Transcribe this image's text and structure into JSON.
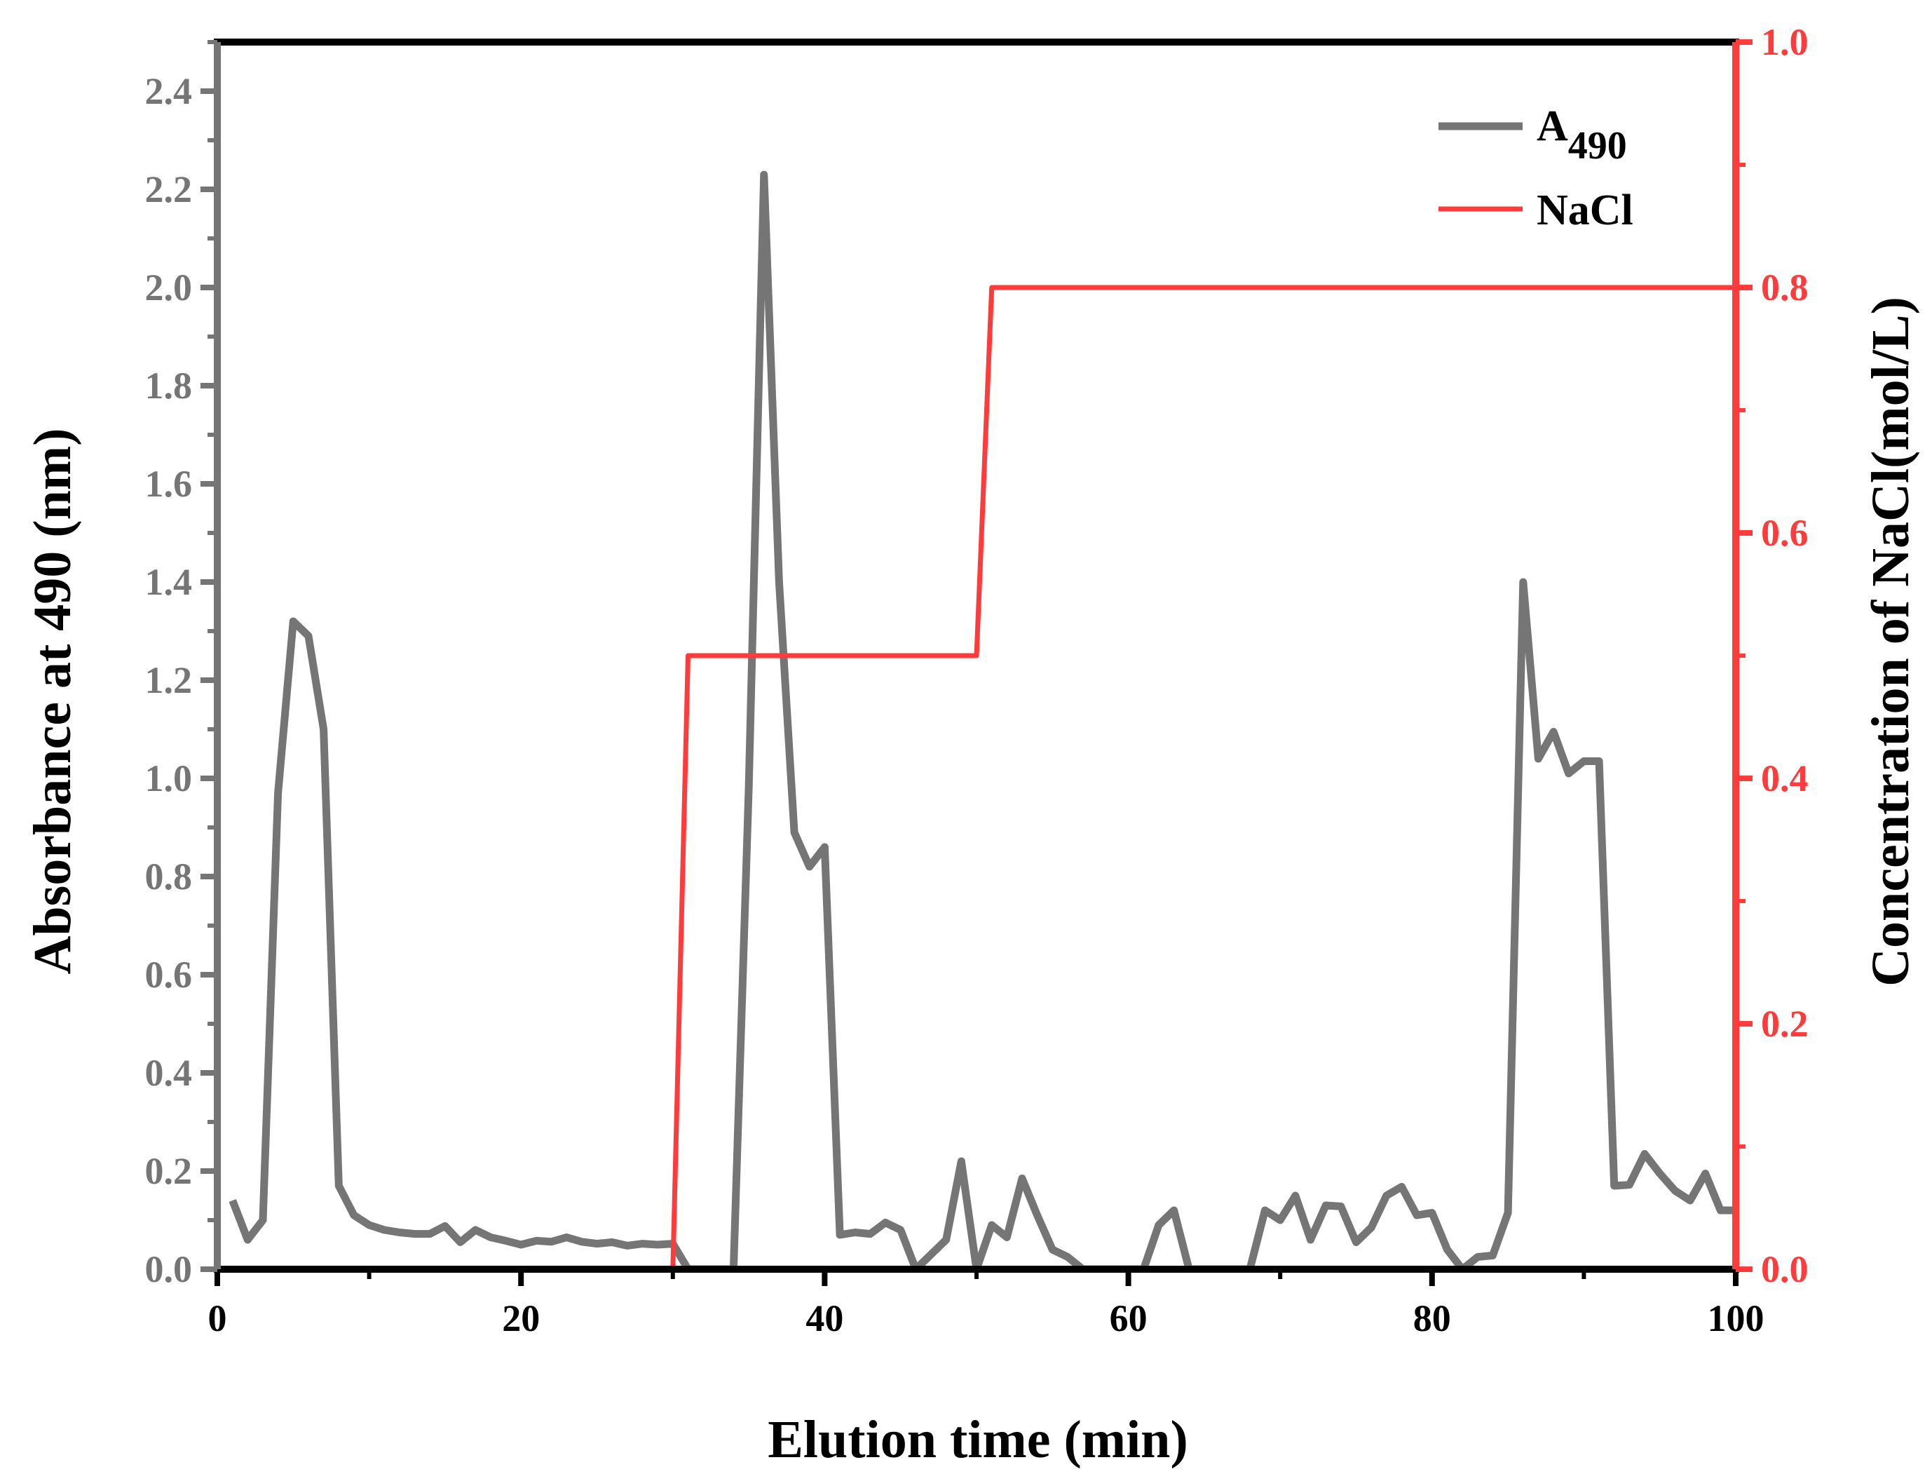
{
  "chart_data": {
    "type": "line",
    "xlabel": "Elution time (min)",
    "ylabel_left": "Absorbance at 490 (nm)",
    "ylabel_right": "Concentration of NaCl(mol/L)",
    "xlim": [
      0,
      100
    ],
    "ylim_left": [
      0,
      2.5
    ],
    "ylim_right": [
      0,
      1.0
    ],
    "x_ticks": [
      "0",
      "20",
      "40",
      "60",
      "80",
      "100"
    ],
    "y_left_ticks": [
      "0.0",
      "0.2",
      "0.4",
      "0.6",
      "0.8",
      "1.0",
      "1.2",
      "1.4",
      "1.6",
      "1.8",
      "2.0",
      "2.2",
      "2.4"
    ],
    "y_right_ticks": [
      "0.0",
      "0.2",
      "0.4",
      "0.6",
      "0.8",
      "1.0"
    ],
    "grid": false,
    "legend_position": "top-right",
    "series": [
      {
        "name": "A",
        "name_subscript": "490",
        "axis": "left",
        "color": "#757575",
        "x": [
          1,
          2,
          3,
          4,
          5,
          6,
          7,
          8,
          9,
          10,
          11,
          12,
          13,
          14,
          15,
          16,
          17,
          18,
          19,
          20,
          21,
          22,
          23,
          24,
          25,
          26,
          27,
          28,
          29,
          30,
          31,
          32,
          33,
          34,
          35,
          36,
          37,
          38,
          39,
          40,
          41,
          42,
          43,
          44,
          45,
          46,
          47,
          48,
          49,
          50,
          51,
          52,
          53,
          54,
          55,
          56,
          57,
          58,
          59,
          60,
          61,
          62,
          63,
          64,
          65,
          66,
          67,
          68,
          69,
          70,
          71,
          72,
          73,
          74,
          75,
          76,
          77,
          78,
          79,
          80,
          81,
          82,
          83,
          84,
          85,
          86,
          87,
          88,
          89,
          90,
          91,
          92,
          93,
          94,
          95,
          96,
          97,
          98,
          99,
          100
        ],
        "values": [
          0.14,
          0.06,
          0.1,
          0.97,
          1.32,
          1.29,
          1.1,
          0.17,
          0.11,
          0.09,
          0.08,
          0.075,
          0.072,
          0.072,
          0.088,
          0.055,
          0.08,
          0.065,
          0.058,
          0.05,
          0.058,
          0.056,
          0.065,
          0.056,
          0.052,
          0.055,
          0.048,
          0.052,
          0.05,
          0.052,
          0.0,
          0.0,
          0.0,
          0.0,
          0.98,
          2.23,
          1.4,
          0.89,
          0.82,
          0.86,
          0.07,
          0.075,
          0.072,
          0.095,
          0.08,
          0.0,
          0.03,
          0.06,
          0.22,
          0.0,
          0.09,
          0.065,
          0.185,
          0.11,
          0.04,
          0.025,
          0.0,
          0.0,
          0.0,
          0.0,
          0.0,
          0.09,
          0.12,
          0.0,
          0.0,
          0.0,
          0.0,
          0.0,
          0.12,
          0.1,
          0.15,
          0.06,
          0.13,
          0.128,
          0.055,
          0.085,
          0.15,
          0.168,
          0.11,
          0.115,
          0.04,
          0.0,
          0.025,
          0.028,
          0.115,
          1.4,
          1.04,
          1.095,
          1.01,
          1.035,
          1.035,
          0.17,
          0.172,
          0.235,
          0.195,
          0.16,
          0.14,
          0.195,
          0.12,
          0.12
        ]
      },
      {
        "name": "NaCl",
        "axis": "right",
        "color": "#ff3b3b",
        "x": [
          30,
          31,
          50,
          51,
          100
        ],
        "values": [
          0.0,
          0.5,
          0.5,
          0.8,
          0.8
        ]
      }
    ]
  }
}
